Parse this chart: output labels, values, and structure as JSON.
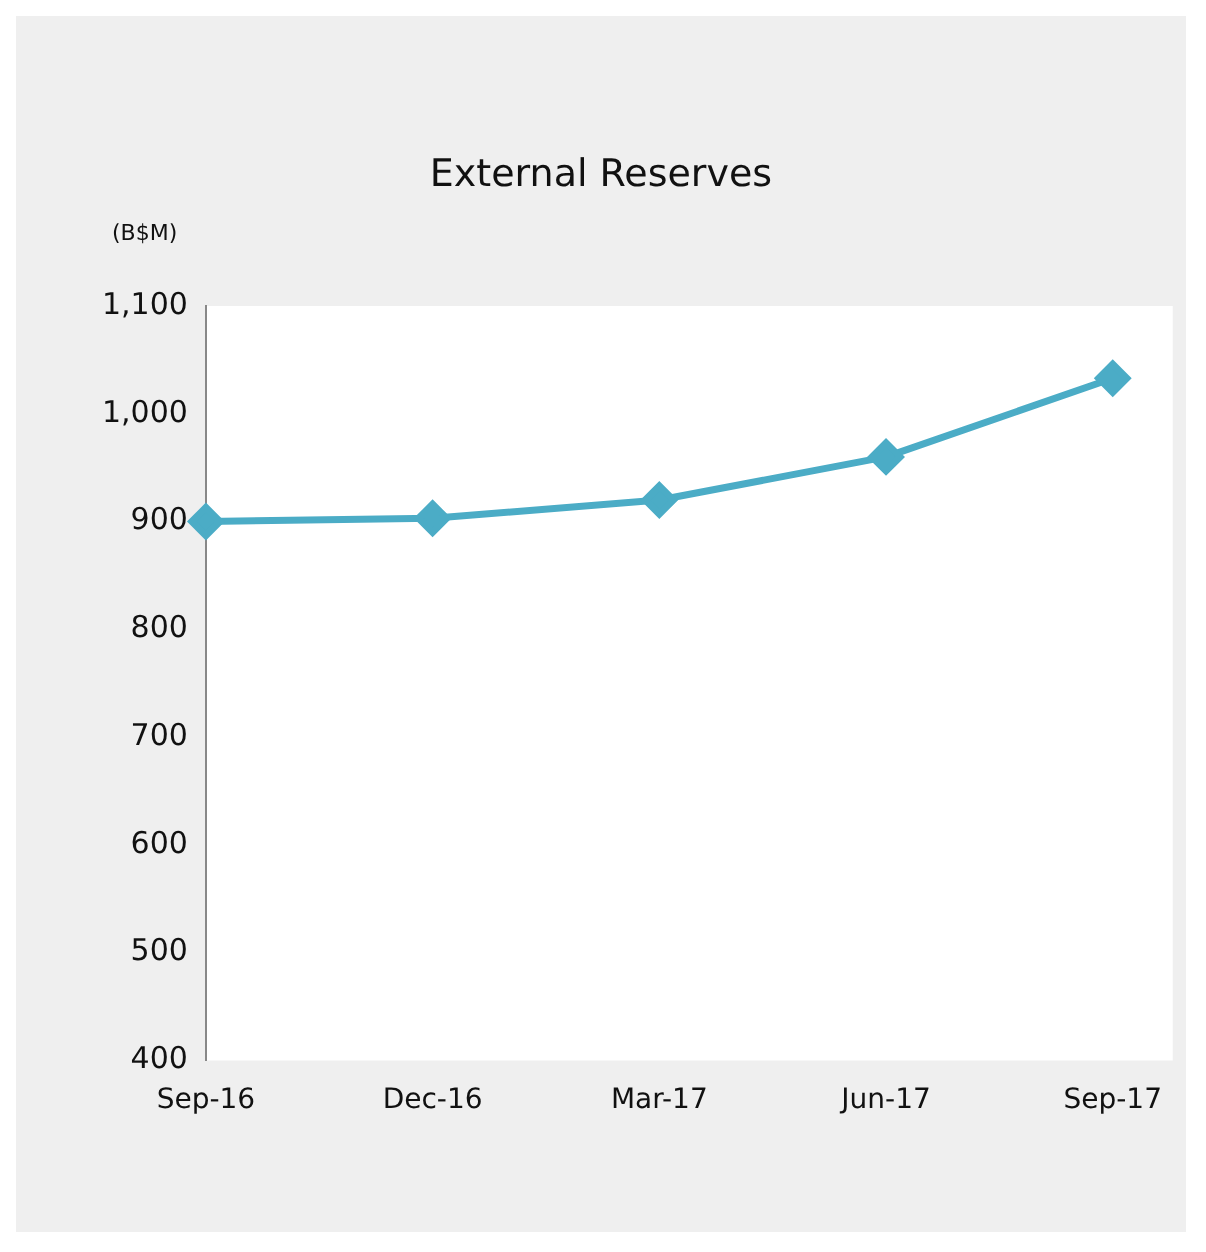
{
  "chart_data": {
    "type": "line",
    "title": "External Reserves",
    "ylabel": "(B$M)",
    "categories": [
      "Sep-16",
      "Dec-16",
      "Mar-17",
      "Jun-17",
      "Sep-17"
    ],
    "series": [
      {
        "color": "#4bacc6",
        "values": [
          900,
          903,
          920,
          960,
          1033
        ]
      }
    ],
    "ylim": [
      400,
      1100
    ],
    "yticks": [
      {
        "value": 400,
        "label": "400"
      },
      {
        "value": 500,
        "label": "500"
      },
      {
        "value": 600,
        "label": "600"
      },
      {
        "value": 700,
        "label": "700"
      },
      {
        "value": 800,
        "label": "800"
      },
      {
        "value": 900,
        "label": "900"
      },
      {
        "value": 1000,
        "label": "1,000"
      },
      {
        "value": 1100,
        "label": "1,100"
      }
    ],
    "grid": false,
    "legend": false,
    "marker": "diamond"
  }
}
